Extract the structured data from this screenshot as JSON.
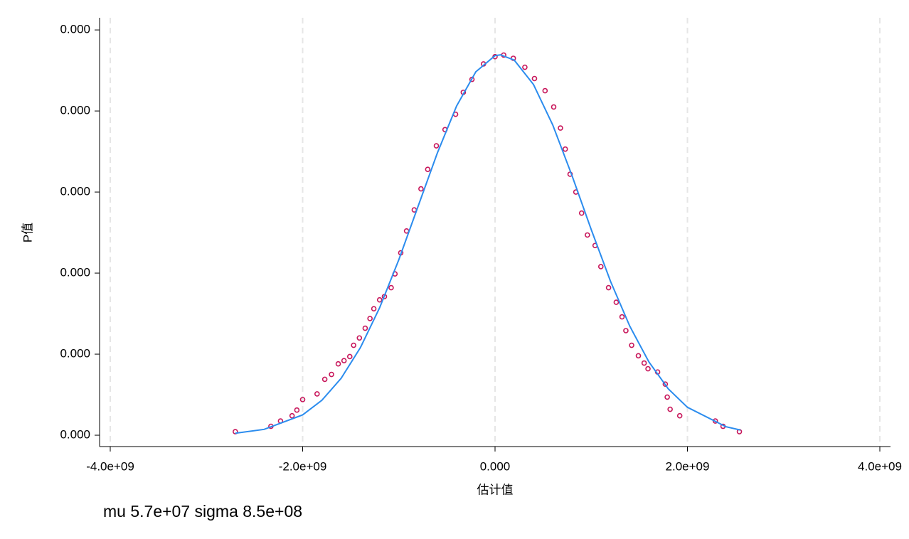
{
  "chart_data": {
    "type": "scatter",
    "note": "mu 5.7e+07 sigma 8.5e+08",
    "x_label": "估计值",
    "y_label": "P值",
    "xlim": [
      -4111000000.0,
      4111000000.0
    ],
    "ylim": [
      -1.4e-11,
      5.15e-10
    ],
    "xticks": [
      {
        "value": -4000000000.0,
        "label": "-4.0e+09"
      },
      {
        "value": -2000000000.0,
        "label": "-2.0e+09"
      },
      {
        "value": 0,
        "label": "0.000"
      },
      {
        "value": 2000000000.0,
        "label": "2.0e+09"
      },
      {
        "value": 4000000000.0,
        "label": "4.0e+09"
      }
    ],
    "yticks": [
      {
        "value": 0,
        "label": "0.000"
      },
      {
        "value": 1e-10,
        "label": "0.000"
      },
      {
        "value": 2e-10,
        "label": "0.000"
      },
      {
        "value": 3e-10,
        "label": "0.000"
      },
      {
        "value": 4e-10,
        "label": "0.000"
      },
      {
        "value": 5e-10,
        "label": "0.000"
      }
    ],
    "grid": "x",
    "series": [
      {
        "type": "scatter",
        "color": "#c8175b",
        "x": [
          -2700000000.0,
          -2330000000.0,
          -2230000000.0,
          -2110000000.0,
          -2060000000.0,
          -2000000000.0,
          -1850000000.0,
          -1770000000.0,
          -1700000000.0,
          -1630000000.0,
          -1570000000.0,
          -1510000000.0,
          -1470000000.0,
          -1410000000.0,
          -1350000000.0,
          -1300000000.0,
          -1260000000.0,
          -1200000000.0,
          -1150000000.0,
          -1080000000.0,
          -1040000000.0,
          -980000000.0,
          -920000000.0,
          -840000000.0,
          -770000000.0,
          -700000000.0,
          -610000000.0,
          -520000000.0,
          -410000000.0,
          -330000000.0,
          -240000000.0,
          -120000000.0,
          0,
          90000000.0,
          190000000.0,
          310000000.0,
          410000000.0,
          520000000.0,
          610000000.0,
          680000000.0,
          730000000.0,
          780000000.0,
          840000000.0,
          900000000.0,
          960000000.0,
          1040000000.0,
          1100000000.0,
          1180000000.0,
          1260000000.0,
          1320000000.0,
          1360000000.0,
          1420000000.0,
          1490000000.0,
          1550000000.0,
          1590000000.0,
          1690000000.0,
          1770000000.0,
          1790000000.0,
          1820000000.0,
          1920000000.0,
          2290000000.0,
          2370000000.0,
          2540000000.0
        ],
        "values": [
          4.4e-12,
          1.1e-11,
          1.75e-11,
          2.4e-11,
          3.1e-11,
          4.4e-11,
          5.1e-11,
          6.9e-11,
          7.5e-11,
          8.8e-11,
          9.2e-11,
          9.7e-11,
          1.11e-10,
          1.2e-10,
          1.32e-10,
          1.44e-10,
          1.56e-10,
          1.67e-10,
          1.71e-10,
          1.82e-10,
          1.99e-10,
          2.25e-10,
          2.52e-10,
          2.78e-10,
          3.04e-10,
          3.28e-10,
          3.57e-10,
          3.77e-10,
          3.96e-10,
          4.23e-10,
          4.39e-10,
          4.58e-10,
          4.67e-10,
          4.69e-10,
          4.65e-10,
          4.54e-10,
          4.4e-10,
          4.25e-10,
          4.05e-10,
          3.79e-10,
          3.53e-10,
          3.22e-10,
          3e-10,
          2.74e-10,
          2.47e-10,
          2.34e-10,
          2.08e-10,
          1.82e-10,
          1.64e-10,
          1.46e-10,
          1.29e-10,
          1.11e-10,
          9.8e-11,
          8.9e-11,
          8.2e-11,
          7.8e-11,
          6.3e-11,
          4.7e-11,
          3.2e-11,
          2.4e-11,
          1.75e-11,
          1.1e-11,
          4.4e-12
        ]
      },
      {
        "type": "line",
        "color": "#2b8cee",
        "x": [
          -2700000000.0,
          -2400000000.0,
          -2000000000.0,
          -1800000000.0,
          -1600000000.0,
          -1400000000.0,
          -1200000000.0,
          -1000000000.0,
          -800000000.0,
          -600000000.0,
          -400000000.0,
          -200000000.0,
          0,
          57000000.0,
          200000000.0,
          400000000.0,
          600000000.0,
          800000000.0,
          1000000000.0,
          1200000000.0,
          1400000000.0,
          1600000000.0,
          1800000000.0,
          2000000000.0,
          2400000000.0,
          2550000000.0
        ],
        "values": [
          2.44e-12,
          7.2e-12,
          2.51e-11,
          4.31e-11,
          7.02e-11,
          1.08e-10,
          1.572e-10,
          2.166e-10,
          2.824e-10,
          3.481e-10,
          4.061e-10,
          4.483e-10,
          4.683e-10,
          4.693e-10,
          4.627e-10,
          4.326e-10,
          3.827e-10,
          3.203e-10,
          2.537e-10,
          1.9e-10,
          1.347e-10,
          9.03e-11,
          5.73e-11,
          3.44e-11,
          1.05e-11,
          6.4e-12
        ]
      }
    ]
  }
}
